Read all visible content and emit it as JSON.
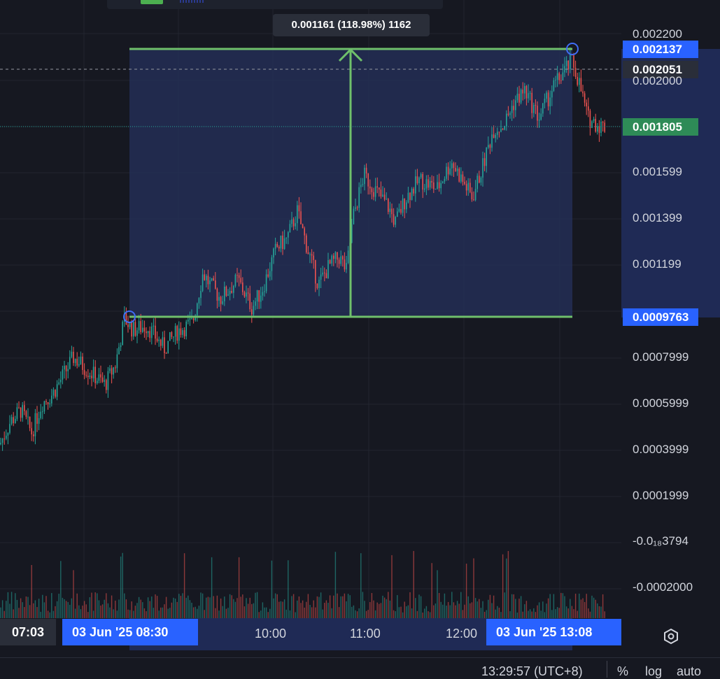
{
  "measure": {
    "tooltip": "0.001161 (118.98%) 1162",
    "top_price": "0.002137",
    "bottom_price": "0.0009763"
  },
  "price_labels": {
    "crosshair": "0.002051",
    "last": "0.001805"
  },
  "price_axis": [
    "0.002200",
    "0.002000",
    "0.001599",
    "0.001399",
    "0.001199",
    "0.0007999",
    "0.0005999",
    "0.0003999",
    "0.0001999",
    "-0.0₁₈3794",
    "-0.0002000"
  ],
  "time_axis": {
    "left_time": "07:03",
    "range_start": "03 Jun '25   08:30",
    "ticks": [
      "10:00",
      "11:00",
      "12:00"
    ],
    "range_end": "03 Jun '25   13:08"
  },
  "status_bar": {
    "clock": "13:29:57 (UTC+8)",
    "percent": "%",
    "log": "log",
    "auto": "auto"
  },
  "chart_data": {
    "type": "candlestick",
    "x": [
      "07:03",
      "08:30",
      "10:00",
      "11:00",
      "12:00",
      "13:08"
    ],
    "y_range": [
      -0.0002,
      0.0022
    ],
    "measure_range": {
      "from": 0.0009763,
      "to": 0.002137,
      "change": 0.001161,
      "change_pct": 118.98,
      "bars": 1162
    },
    "close_path": [
      [
        0,
        0.0004
      ],
      [
        15,
        0.0005
      ],
      [
        30,
        0.00055
      ],
      [
        45,
        0.00045
      ],
      [
        60,
        0.00058
      ],
      [
        75,
        0.00062
      ],
      [
        90,
        0.0007
      ],
      [
        105,
        0.00078
      ],
      [
        120,
        0.00074
      ],
      [
        135,
        0.0007
      ],
      [
        150,
        0.00066
      ],
      [
        165,
        0.00075
      ],
      [
        178,
        0.00095
      ],
      [
        190,
        0.0009
      ],
      [
        210,
        0.00092
      ],
      [
        235,
        0.00082
      ],
      [
        255,
        0.0009
      ],
      [
        275,
        0.00093
      ],
      [
        290,
        0.00115
      ],
      [
        300,
        0.0011
      ],
      [
        315,
        0.00104
      ],
      [
        340,
        0.00112
      ],
      [
        360,
        0.001
      ],
      [
        375,
        0.00108
      ],
      [
        395,
        0.00126
      ],
      [
        410,
        0.0013
      ],
      [
        425,
        0.00142
      ],
      [
        440,
        0.00125
      ],
      [
        455,
        0.0011
      ],
      [
        470,
        0.00118
      ],
      [
        485,
        0.00122
      ],
      [
        495,
        0.00116
      ],
      [
        505,
        0.0014
      ],
      [
        520,
        0.00158
      ],
      [
        540,
        0.0015
      ],
      [
        555,
        0.00144
      ],
      [
        565,
        0.00137
      ],
      [
        580,
        0.00148
      ],
      [
        600,
        0.00156
      ],
      [
        625,
        0.00152
      ],
      [
        645,
        0.00164
      ],
      [
        660,
        0.00156
      ],
      [
        675,
        0.00148
      ],
      [
        690,
        0.00162
      ],
      [
        705,
        0.00178
      ],
      [
        720,
        0.0018
      ],
      [
        735,
        0.0019
      ],
      [
        750,
        0.00195
      ],
      [
        770,
        0.00183
      ],
      [
        790,
        0.00196
      ],
      [
        805,
        0.00203
      ],
      [
        818,
        0.00208
      ],
      [
        828,
        0.00198
      ],
      [
        840,
        0.00183
      ],
      [
        855,
        0.0018
      ],
      [
        865,
        0.00179
      ]
    ]
  },
  "colors": {
    "background": "#161821",
    "bull": "#26a69a",
    "bear": "#ef5350",
    "measure_line": "#6fc06b",
    "measure_fill": "#25305c",
    "accent": "#2962ff",
    "last_price": "#2e8b57"
  },
  "icons": {
    "settings": "gear-icon"
  }
}
